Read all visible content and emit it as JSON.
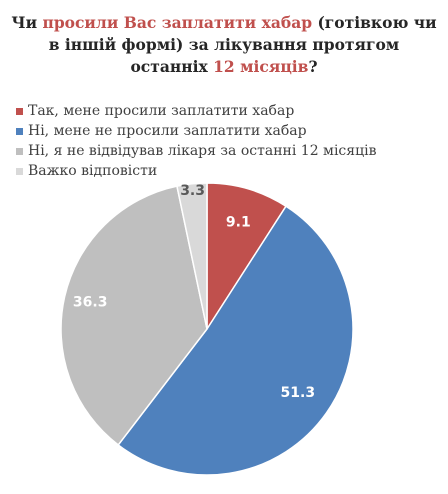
{
  "title": {
    "part1": "Чи ",
    "highlight1": "просили Вас заплатити хабар",
    "part2": " (готівкою чи в іншій формі) за лікування протягом останніх ",
    "highlight2": "12 місяців",
    "part3": "?"
  },
  "chart_data": {
    "type": "pie",
    "title": "Чи просили Вас заплатити хабар (готівкою чи в іншій формі) за лікування протягом останніх 12 місяців?",
    "legend_position": "top",
    "start_angle_deg": 0,
    "direction": "clockwise",
    "slices": [
      {
        "label": "Так, мене просили заплатити хабар",
        "value": 9.1,
        "value_label": "9.1",
        "color": "#c0504d",
        "label_color": "#ffffff"
      },
      {
        "label": "Ні, мене не просили заплатити хабар",
        "value": 51.3,
        "value_label": "51.3",
        "color": "#4f81bd",
        "label_color": "#ffffff"
      },
      {
        "label": "Ні, я не відвідував лікаря за останні 12 місяців",
        "value": 36.3,
        "value_label": "36.3",
        "color": "#bfbfbf",
        "label_color": "#ffffff"
      },
      {
        "label": "Важко відповісти",
        "value": 3.3,
        "value_label": "3.3",
        "color": "#d9d9d9",
        "label_color": "#595959"
      }
    ]
  }
}
